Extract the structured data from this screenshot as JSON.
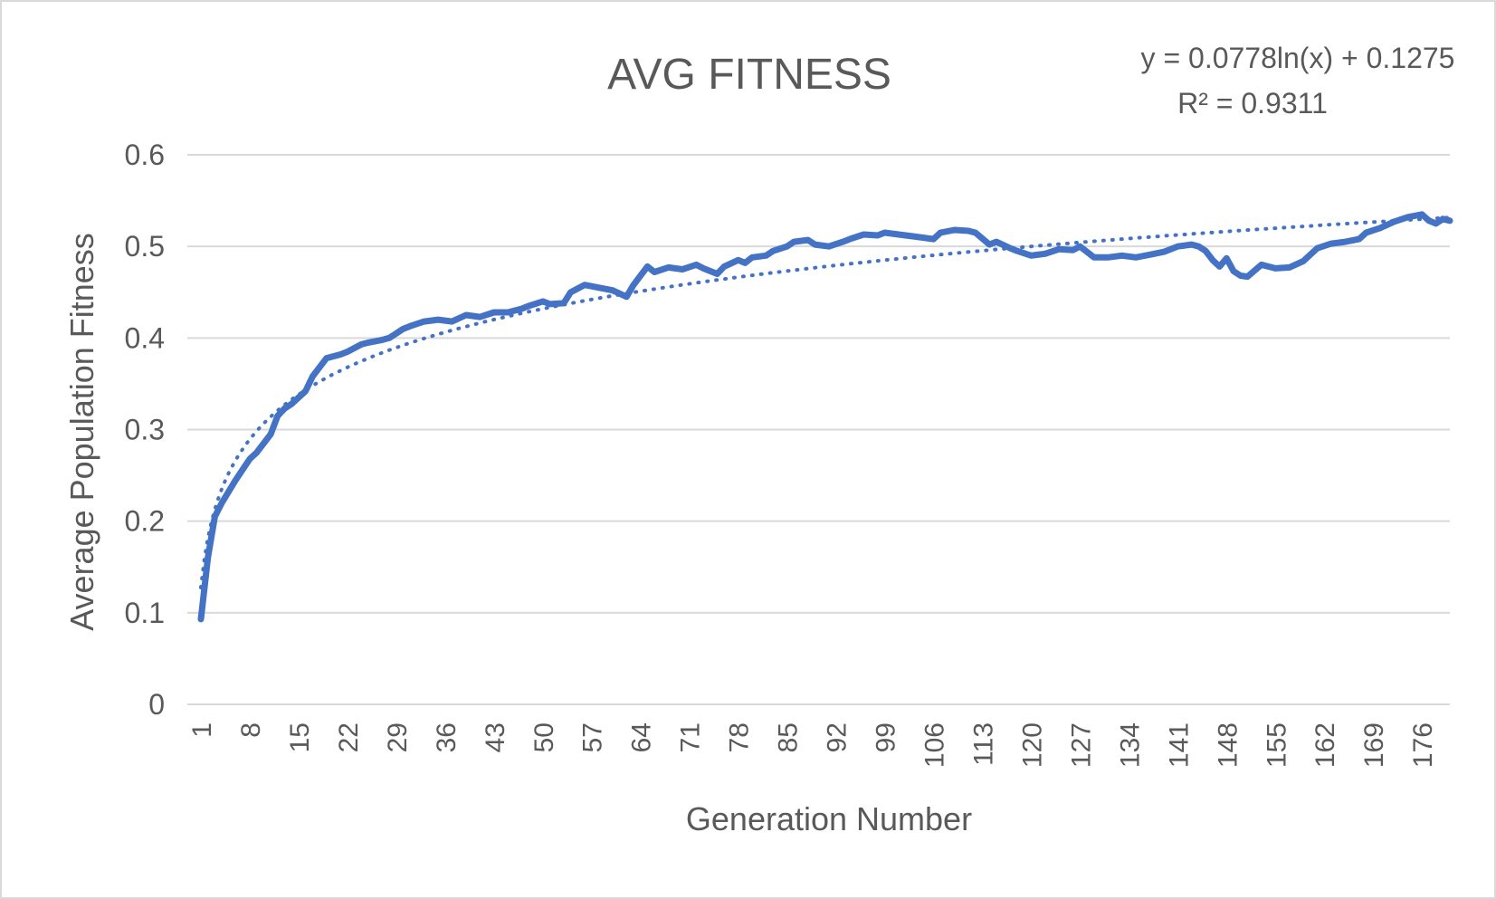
{
  "chart_data": {
    "type": "line",
    "title": "AVG FITNESS",
    "xlabel": "Generation Number",
    "ylabel": "Average Population Fitness",
    "ylim": [
      0,
      0.6
    ],
    "y_ticks": [
      "0",
      "0.1",
      "0.2",
      "0.3",
      "0.4",
      "0.5",
      "0.6"
    ],
    "x_tick_labels": [
      "1",
      "8",
      "15",
      "22",
      "29",
      "36",
      "43",
      "50",
      "57",
      "64",
      "71",
      "78",
      "85",
      "92",
      "99",
      "106",
      "113",
      "120",
      "127",
      "134",
      "141",
      "148",
      "155",
      "162",
      "169",
      "176"
    ],
    "x_range": [
      1,
      180
    ],
    "grid": true,
    "trendline": {
      "type": "logarithmic",
      "a": 0.0778,
      "b": 0.1275,
      "equation": "y = 0.0778ln(x) + 0.1275",
      "r_squared": "R² = 0.9311"
    },
    "series": [
      {
        "color": "#4472c4",
        "x": [
          1,
          2,
          3,
          4,
          6,
          8,
          9,
          11,
          12,
          13,
          14,
          16,
          17,
          19,
          21,
          22,
          24,
          25,
          27,
          28,
          30,
          31,
          33,
          35,
          37,
          39,
          41,
          43,
          45,
          47,
          48,
          50,
          51,
          53,
          54,
          56,
          58,
          60,
          62,
          63,
          65,
          66,
          68,
          70,
          72,
          73,
          75,
          76,
          78,
          79,
          80,
          82,
          83,
          85,
          86,
          88,
          89,
          91,
          93,
          94,
          96,
          98,
          99,
          101,
          102,
          104,
          106,
          107,
          109,
          111,
          112,
          114,
          115,
          117,
          118,
          120,
          122,
          124,
          126,
          127,
          129,
          131,
          133,
          135,
          137,
          139,
          141,
          143,
          144,
          145,
          146,
          147,
          148,
          149,
          150,
          151,
          153,
          155,
          157,
          159,
          161,
          163,
          165,
          167,
          168,
          170,
          172,
          174,
          176,
          177,
          178,
          179,
          180
        ],
        "values": [
          0.093,
          0.16,
          0.205,
          0.22,
          0.245,
          0.268,
          0.275,
          0.295,
          0.315,
          0.323,
          0.328,
          0.342,
          0.358,
          0.378,
          0.382,
          0.385,
          0.393,
          0.395,
          0.398,
          0.4,
          0.41,
          0.413,
          0.418,
          0.42,
          0.418,
          0.425,
          0.423,
          0.428,
          0.428,
          0.432,
          0.435,
          0.44,
          0.437,
          0.438,
          0.45,
          0.458,
          0.455,
          0.452,
          0.445,
          0.458,
          0.478,
          0.472,
          0.477,
          0.475,
          0.48,
          0.476,
          0.47,
          0.478,
          0.485,
          0.482,
          0.488,
          0.49,
          0.495,
          0.5,
          0.505,
          0.507,
          0.502,
          0.5,
          0.505,
          0.508,
          0.513,
          0.512,
          0.515,
          0.513,
          0.512,
          0.51,
          0.508,
          0.515,
          0.518,
          0.517,
          0.515,
          0.502,
          0.505,
          0.498,
          0.495,
          0.49,
          0.492,
          0.497,
          0.496,
          0.5,
          0.488,
          0.488,
          0.49,
          0.488,
          0.491,
          0.494,
          0.5,
          0.502,
          0.5,
          0.495,
          0.485,
          0.478,
          0.487,
          0.473,
          0.468,
          0.467,
          0.48,
          0.476,
          0.477,
          0.484,
          0.498,
          0.503,
          0.505,
          0.508,
          0.515,
          0.52,
          0.527,
          0.532,
          0.535,
          0.528,
          0.525,
          0.53,
          0.528
        ]
      }
    ]
  }
}
